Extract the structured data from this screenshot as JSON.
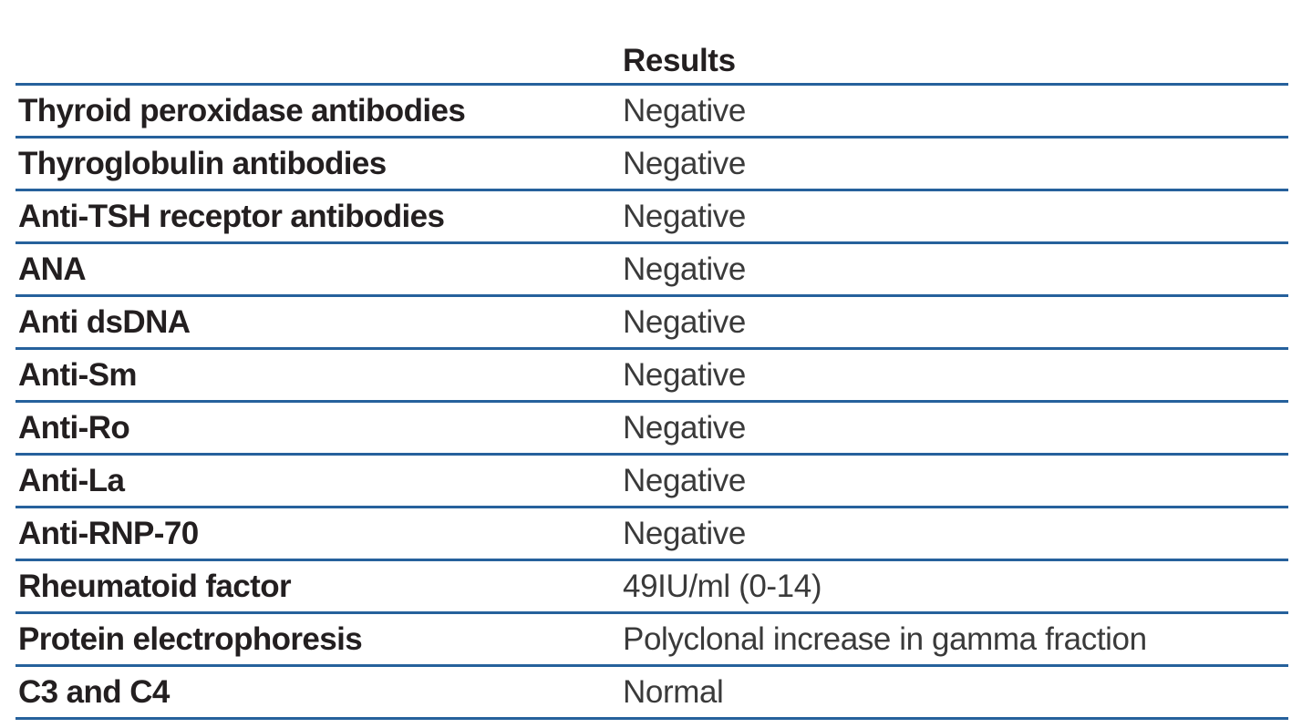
{
  "table": {
    "header": {
      "test_label": "",
      "results_label": "Results"
    },
    "rows": [
      {
        "test": "Thyroid peroxidase antibodies",
        "result": "Negative"
      },
      {
        "test": "Thyroglobulin antibodies",
        "result": "Negative"
      },
      {
        "test": "Anti-TSH receptor antibodies",
        "result": "Negative"
      },
      {
        "test": "ANA",
        "result": "Negative"
      },
      {
        "test": "Anti dsDNA",
        "result": "Negative"
      },
      {
        "test": "Anti-Sm",
        "result": "Negative"
      },
      {
        "test": "Anti-Ro",
        "result": "Negative"
      },
      {
        "test": "Anti-La",
        "result": "Negative"
      },
      {
        "test": "Anti-RNP-70",
        "result": "Negative"
      },
      {
        "test": "Rheumatoid factor",
        "result": "49IU/ml (0-14)"
      },
      {
        "test": "Protein electrophoresis",
        "result": "Polyclonal increase in gamma fraction"
      },
      {
        "test": "C3 and C4",
        "result": "Normal"
      }
    ],
    "colors": {
      "rule_blue": "#26619c",
      "test_text": "#231f20",
      "result_text": "#3a3a3a",
      "background": "#ffffff"
    }
  }
}
